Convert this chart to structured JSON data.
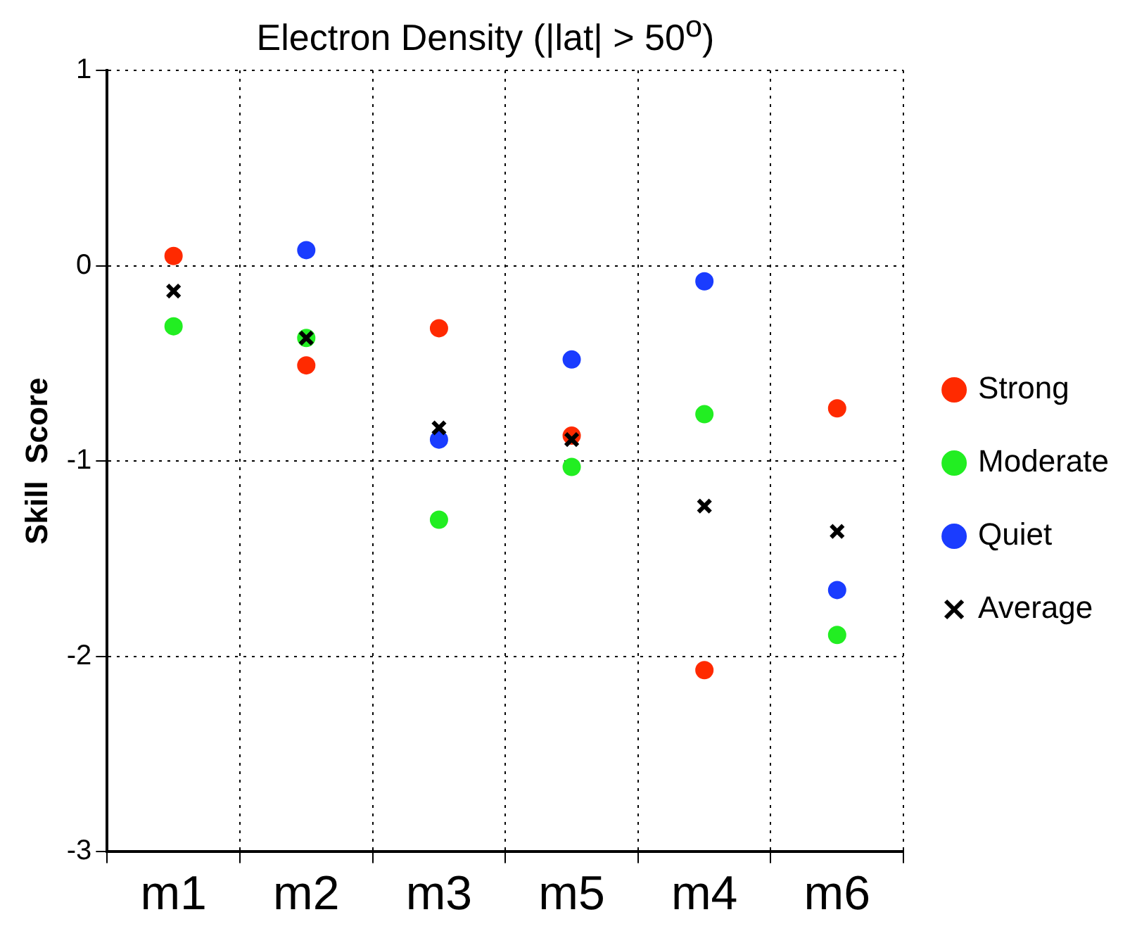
{
  "chart_data": {
    "type": "scatter",
    "title": "Electron Density (|lat| > 50$^{o}$)",
    "ylabel": "Skill  Score",
    "categories": [
      "m1",
      "m2",
      "m3",
      "m5",
      "m4",
      "m6"
    ],
    "ylim": [
      -3,
      1
    ],
    "yticks": [
      -3,
      -2,
      -1,
      0,
      1
    ],
    "grid": true,
    "legend": "right",
    "series": [
      {
        "name": "Strong",
        "color": "#ff2a00",
        "marker": "circle",
        "values": [
          0.05,
          -0.51,
          -0.32,
          -0.87,
          -2.07,
          -0.73
        ]
      },
      {
        "name": "Moderate",
        "color": "#22ee22",
        "marker": "circle",
        "values": [
          -0.31,
          -0.37,
          -1.3,
          -1.03,
          -0.76,
          -1.89
        ]
      },
      {
        "name": "Quiet",
        "color": "#1a3cff",
        "marker": "circle",
        "values": [
          null,
          0.08,
          -0.89,
          -0.48,
          -0.08,
          -1.66
        ]
      },
      {
        "name": "Average",
        "color": "#000000",
        "marker": "cross",
        "values": [
          -0.13,
          -0.37,
          -0.83,
          -0.89,
          -1.23,
          -1.36
        ]
      }
    ]
  }
}
